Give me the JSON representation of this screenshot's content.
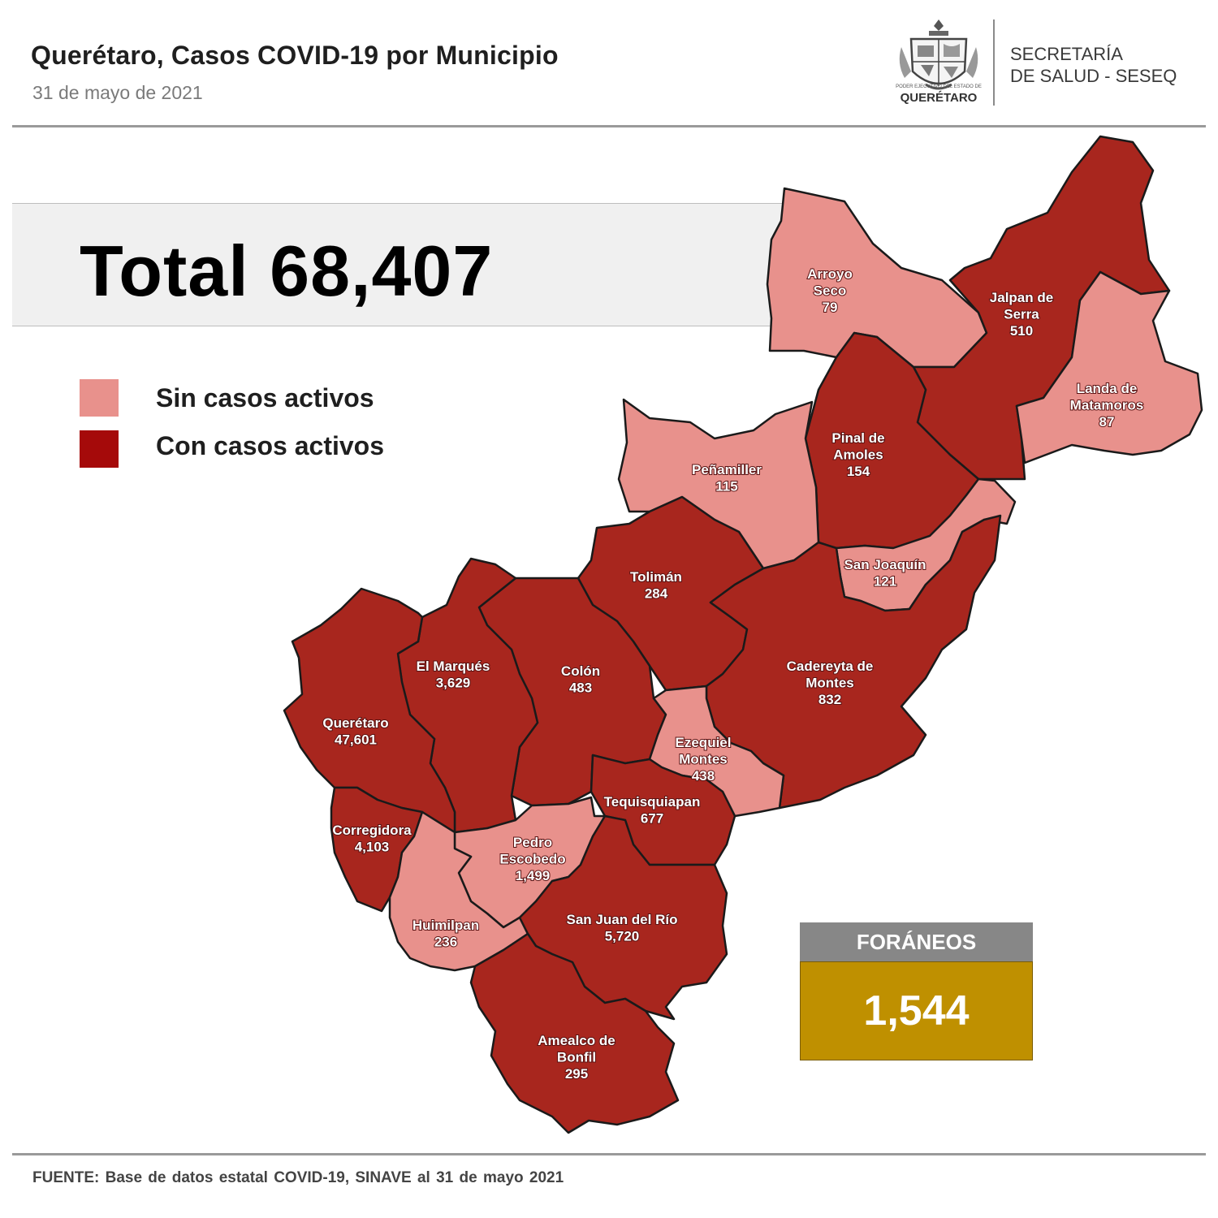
{
  "header": {
    "title": "Querétaro, Casos COVID-19 por Municipio",
    "date": "31 de mayo de 2021",
    "logo_caption": "QUERÉTARO",
    "logo_small_text": "PODER EJECUTIVO DEL ESTADO DE",
    "org_line1": "SECRETARÍA",
    "org_line2": "DE SALUD - SESEQ"
  },
  "total": {
    "label": "Total 68,407"
  },
  "legend": [
    {
      "label": "Sin casos activos",
      "color": "#e8918c"
    },
    {
      "label": "Con casos activos",
      "color": "#a50a0a"
    }
  ],
  "foraneos": {
    "label": "FORÁNEOS",
    "value": "1,544"
  },
  "footer": "FUENTE:  Base de datos estatal COVID-19,  SINAVE  al 31 de mayo 2021",
  "colors": {
    "active": "#a8261e",
    "inactive": "#e8918c"
  },
  "municipalities": [
    {
      "id": "arroyo-seco",
      "name_lines": [
        "Arroyo",
        "Seco"
      ],
      "cases": "79",
      "active": false
    },
    {
      "id": "jalpan-de-serra",
      "name_lines": [
        "Jalpan de",
        "Serra"
      ],
      "cases": "510",
      "active": true
    },
    {
      "id": "landa-de-matamoros",
      "name_lines": [
        "Landa de",
        "Matamoros"
      ],
      "cases": "87",
      "active": false
    },
    {
      "id": "pinal-de-amoles",
      "name_lines": [
        "Pinal de",
        "Amoles"
      ],
      "cases": "154",
      "active": true
    },
    {
      "id": "penamiller",
      "name_lines": [
        "Peñamiller"
      ],
      "cases": "115",
      "active": false
    },
    {
      "id": "san-joaquin",
      "name_lines": [
        "San Joaquín"
      ],
      "cases": "121",
      "active": false
    },
    {
      "id": "toliman",
      "name_lines": [
        "Tolimán"
      ],
      "cases": "284",
      "active": true
    },
    {
      "id": "cadereyta-de-montes",
      "name_lines": [
        "Cadereyta de",
        "Montes"
      ],
      "cases": "832",
      "active": true
    },
    {
      "id": "colon",
      "name_lines": [
        "Colón"
      ],
      "cases": "483",
      "active": true
    },
    {
      "id": "el-marques",
      "name_lines": [
        "El  Marqués"
      ],
      "cases": "3,629",
      "active": true
    },
    {
      "id": "queretaro",
      "name_lines": [
        "Querétaro"
      ],
      "cases": "47,601",
      "active": true
    },
    {
      "id": "ezequiel-montes",
      "name_lines": [
        "Ezequiel",
        "Montes"
      ],
      "cases": "438",
      "active": false
    },
    {
      "id": "tequisquiapan",
      "name_lines": [
        "Tequisquiapan"
      ],
      "cases": "677",
      "active": true
    },
    {
      "id": "corregidora",
      "name_lines": [
        "Corregidora"
      ],
      "cases": "4,103",
      "active": true
    },
    {
      "id": "pedro-escobedo",
      "name_lines": [
        "Pedro",
        "Escobedo"
      ],
      "cases": "1,499",
      "active": false
    },
    {
      "id": "huimilpan",
      "name_lines": [
        "Huimilpan"
      ],
      "cases": "236",
      "active": false
    },
    {
      "id": "san-juan-del-rio",
      "name_lines": [
        "San Juan del Río"
      ],
      "cases": "5,720",
      "active": true
    },
    {
      "id": "amealco-de-bonfil",
      "name_lines": [
        "Amealco de",
        "Bonfil"
      ],
      "cases": "295",
      "active": true
    }
  ]
}
